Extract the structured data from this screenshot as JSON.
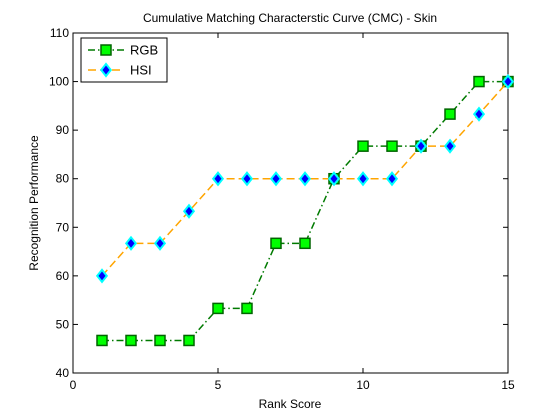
{
  "chart_data": {
    "type": "line",
    "title": "Cumulative Matching Characterstic Curve (CMC) - Skin",
    "xlabel": "Rank Score",
    "ylabel": "Recognition Performance",
    "xlim": [
      0,
      15
    ],
    "ylim": [
      40,
      110
    ],
    "xticks": [
      0,
      5,
      10,
      15
    ],
    "yticks": [
      40,
      50,
      60,
      70,
      80,
      90,
      100,
      110
    ],
    "grid": false,
    "legend": "top-left",
    "x": [
      1,
      2,
      3,
      4,
      5,
      6,
      7,
      8,
      9,
      10,
      11,
      12,
      13,
      14,
      15
    ],
    "series": [
      {
        "name": "RGB",
        "values": [
          46.7,
          46.7,
          46.7,
          46.7,
          53.3,
          53.3,
          66.7,
          66.7,
          80,
          86.7,
          86.7,
          86.7,
          93.3,
          100,
          100
        ],
        "line_color": "#007a00",
        "marker": "square",
        "marker_fill": "#00ff00",
        "marker_edge": "#006400"
      },
      {
        "name": "HSI",
        "values": [
          60,
          66.7,
          66.7,
          73.3,
          80,
          80,
          80,
          80,
          80,
          80,
          80,
          86.7,
          86.7,
          93.3,
          100
        ],
        "line_color": "#ffa500",
        "marker": "diamond",
        "marker_fill": "#0000ff",
        "marker_edge": "#00ffff"
      }
    ]
  }
}
